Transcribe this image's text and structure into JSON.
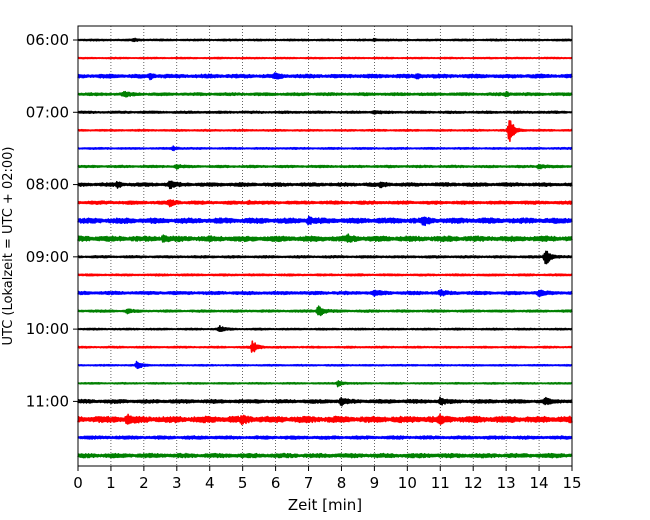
{
  "chart_data": {
    "type": "line",
    "title": "",
    "xlabel": "Zeit  [min]",
    "ylabel": "UTC (Lokalzeit = UTC + 02:00)",
    "xlim": [
      0,
      15
    ],
    "x_ticks": [
      "0",
      "1",
      "2",
      "3",
      "4",
      "5",
      "6",
      "7",
      "8",
      "9",
      "10",
      "11",
      "12",
      "13",
      "14",
      "15"
    ],
    "y_tick_labels": [
      "06:00",
      "07:00",
      "08:00",
      "09:00",
      "10:00",
      "11:00"
    ],
    "grid": "vertical dotted",
    "trace_interval_minutes": 15,
    "colors": [
      "#000000",
      "#ff0000",
      "#0000ff",
      "#008000"
    ],
    "traces": [
      {
        "start": "06:00",
        "color": "#000000",
        "noise": 0.6,
        "events": [
          {
            "x": 1.7,
            "amp": 1.2
          },
          {
            "x": 9.0,
            "amp": 1.0
          }
        ]
      },
      {
        "start": "06:15",
        "color": "#ff0000",
        "noise": 0.5,
        "events": []
      },
      {
        "start": "06:30",
        "color": "#0000ff",
        "noise": 1.4,
        "events": [
          {
            "x": 2.2,
            "amp": 2.2
          },
          {
            "x": 6.0,
            "amp": 1.8
          },
          {
            "x": 10.3,
            "amp": 2.0
          }
        ]
      },
      {
        "start": "06:45",
        "color": "#008000",
        "noise": 1.0,
        "events": [
          {
            "x": 1.4,
            "amp": 2.6
          },
          {
            "x": 13.0,
            "amp": 1.6
          }
        ]
      },
      {
        "start": "07:00",
        "color": "#000000",
        "noise": 0.8,
        "events": [
          {
            "x": 9.0,
            "amp": 1.5
          }
        ]
      },
      {
        "start": "07:15",
        "color": "#ff0000",
        "noise": 0.6,
        "events": [
          {
            "x": 13.1,
            "amp": 14.0
          }
        ]
      },
      {
        "start": "07:30",
        "color": "#0000ff",
        "noise": 0.6,
        "events": [
          {
            "x": 2.9,
            "amp": 1.8
          }
        ]
      },
      {
        "start": "07:45",
        "color": "#008000",
        "noise": 0.8,
        "events": [
          {
            "x": 14.0,
            "amp": 3.0
          },
          {
            "x": 3.0,
            "amp": 1.8
          }
        ]
      },
      {
        "start": "08:00",
        "color": "#000000",
        "noise": 1.3,
        "events": [
          {
            "x": 1.2,
            "amp": 2.6
          },
          {
            "x": 2.8,
            "amp": 3.0
          },
          {
            "x": 9.2,
            "amp": 2.2
          }
        ]
      },
      {
        "start": "08:15",
        "color": "#ff0000",
        "noise": 1.2,
        "events": [
          {
            "x": 2.8,
            "amp": 3.2
          },
          {
            "x": 5.2,
            "amp": 1.8
          }
        ]
      },
      {
        "start": "08:30",
        "color": "#0000ff",
        "noise": 2.0,
        "events": [
          {
            "x": 7.0,
            "amp": 3.0
          },
          {
            "x": 10.5,
            "amp": 3.0
          }
        ]
      },
      {
        "start": "08:45",
        "color": "#008000",
        "noise": 2.0,
        "events": [
          {
            "x": 2.6,
            "amp": 3.0
          },
          {
            "x": 8.2,
            "amp": 3.0
          }
        ]
      },
      {
        "start": "09:00",
        "color": "#000000",
        "noise": 0.8,
        "events": [
          {
            "x": 14.2,
            "amp": 9.0
          }
        ]
      },
      {
        "start": "09:15",
        "color": "#ff0000",
        "noise": 0.7,
        "events": []
      },
      {
        "start": "09:30",
        "color": "#0000ff",
        "noise": 1.2,
        "events": [
          {
            "x": 9.0,
            "amp": 3.0
          },
          {
            "x": 11.0,
            "amp": 2.5
          },
          {
            "x": 14.0,
            "amp": 2.5
          }
        ]
      },
      {
        "start": "09:45",
        "color": "#008000",
        "noise": 0.8,
        "events": [
          {
            "x": 7.3,
            "amp": 7.0
          },
          {
            "x": 1.5,
            "amp": 2.0
          }
        ]
      },
      {
        "start": "10:00",
        "color": "#000000",
        "noise": 0.6,
        "events": [
          {
            "x": 4.3,
            "amp": 3.0
          }
        ]
      },
      {
        "start": "10:15",
        "color": "#ff0000",
        "noise": 0.6,
        "events": [
          {
            "x": 5.3,
            "amp": 7.0
          }
        ]
      },
      {
        "start": "10:30",
        "color": "#0000ff",
        "noise": 0.5,
        "events": [
          {
            "x": 1.8,
            "amp": 4.0
          }
        ]
      },
      {
        "start": "10:45",
        "color": "#008000",
        "noise": 0.5,
        "events": [
          {
            "x": 7.9,
            "amp": 3.0
          }
        ]
      },
      {
        "start": "11:00",
        "color": "#000000",
        "noise": 1.4,
        "events": [
          {
            "x": 8.0,
            "amp": 3.0
          },
          {
            "x": 11.0,
            "amp": 3.0
          },
          {
            "x": 14.2,
            "amp": 3.0
          }
        ]
      },
      {
        "start": "11:15",
        "color": "#ff0000",
        "noise": 2.4,
        "events": [
          {
            "x": 1.5,
            "amp": 3.2
          },
          {
            "x": 5.0,
            "amp": 3.0
          },
          {
            "x": 11.0,
            "amp": 3.0
          }
        ]
      },
      {
        "start": "11:30",
        "color": "#0000ff",
        "noise": 1.2,
        "events": []
      },
      {
        "start": "11:45",
        "color": "#008000",
        "noise": 1.6,
        "events": []
      }
    ]
  }
}
